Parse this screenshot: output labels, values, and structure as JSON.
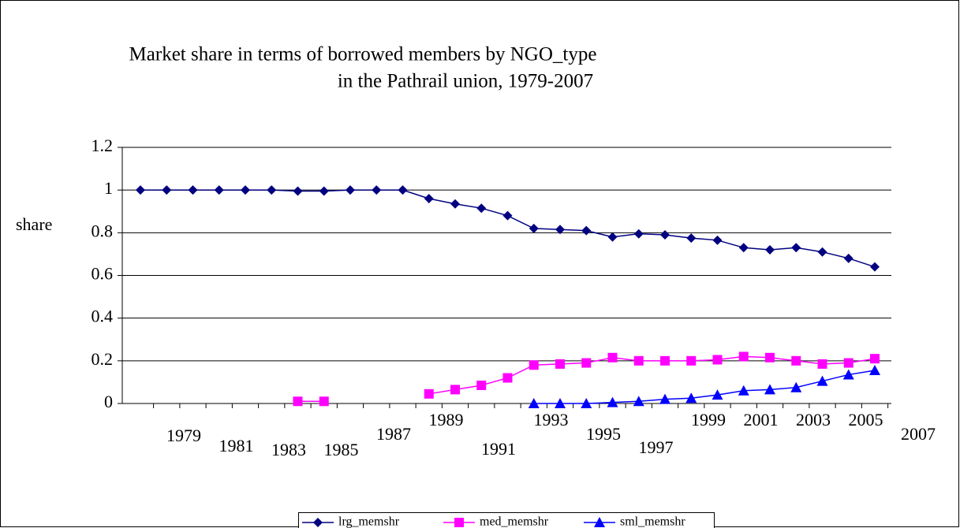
{
  "chart_data": {
    "type": "line",
    "title": [
      "Market share in terms of borrowed members by NGO_type",
      "in the Pathrail union, 1979-2007"
    ],
    "y_label": "share",
    "categories": [
      "1979",
      null,
      "1981",
      null,
      "1983",
      null,
      "1985",
      null,
      "1987",
      null,
      "1989",
      null,
      "1991",
      null,
      "1993",
      null,
      "1995",
      null,
      "1997",
      null,
      "1999",
      null,
      "2001",
      null,
      "2003",
      null,
      "2005",
      null,
      "2007"
    ],
    "series": [
      {
        "name": "lrg_memshr",
        "color": "#000080",
        "marker": "diamond",
        "values": [
          1,
          1,
          1,
          1,
          1,
          1,
          0.995,
          0.995,
          1,
          1,
          1,
          0.96,
          0.935,
          0.915,
          0.88,
          0.82,
          0.815,
          0.81,
          0.78,
          0.795,
          0.79,
          0.775,
          0.765,
          0.73,
          0.72,
          0.73,
          0.71,
          0.68,
          0.64
        ]
      },
      {
        "name": "med_memshr",
        "color": "#ff00ff",
        "marker": "square",
        "values": [
          null,
          null,
          null,
          null,
          null,
          null,
          0.01,
          0.01,
          null,
          null,
          null,
          0.045,
          0.065,
          0.085,
          0.12,
          0.18,
          0.185,
          0.19,
          0.215,
          0.2,
          0.2,
          0.2,
          0.205,
          0.22,
          0.215,
          0.2,
          0.185,
          0.19,
          0.21
        ]
      },
      {
        "name": "sml_memshr",
        "color": "#0000ff",
        "marker": "triangle",
        "values": [
          null,
          null,
          null,
          null,
          null,
          null,
          null,
          null,
          null,
          null,
          null,
          null,
          null,
          null,
          null,
          0,
          0,
          0,
          0.005,
          0.01,
          0.02,
          0.025,
          0.04,
          0.06,
          0.065,
          0.075,
          0.105,
          0.135,
          0.155
        ]
      }
    ],
    "ylim": [
      0,
      1.2
    ],
    "yticks": [
      0,
      0.2,
      0.4,
      0.6,
      0.8,
      1,
      1.2
    ],
    "grid": true,
    "legend": "bottom"
  }
}
